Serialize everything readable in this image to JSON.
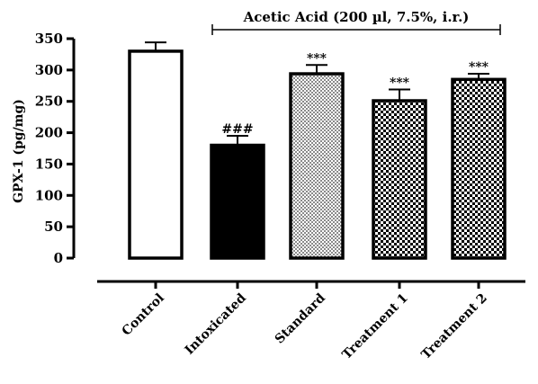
{
  "chart_data": {
    "type": "bar",
    "ylabel": "GPX-1 (pg/mg)",
    "ylim": [
      0,
      350
    ],
    "yticks": [
      0,
      50,
      100,
      150,
      200,
      250,
      300,
      350
    ],
    "categories": [
      "Control",
      "Intoxicated",
      "Standard",
      "Treatment 1",
      "Treatment 2"
    ],
    "values": [
      330,
      180,
      294,
      251,
      285
    ],
    "errors": [
      14,
      15,
      14,
      18,
      9
    ],
    "fills": [
      "white",
      "black",
      "fine-checker",
      "checker",
      "checker"
    ],
    "significance": [
      "",
      "###",
      "***",
      "***",
      "***"
    ],
    "bracket": {
      "label": "Acetic Acid (200 µl, 7.5%, i.r.)",
      "from_category": 1,
      "to_category": 4
    }
  }
}
